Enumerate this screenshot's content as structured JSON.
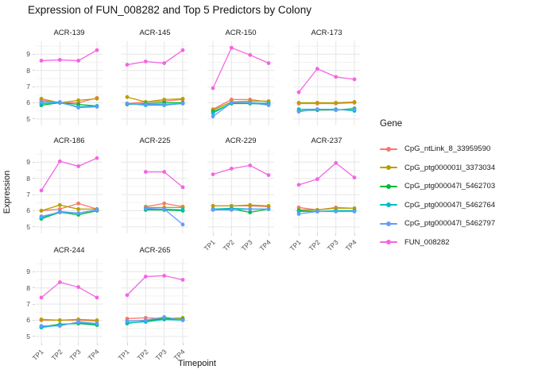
{
  "title": "Expression of FUN_008282 and Top 5 Predictors by Colony",
  "axis": {
    "x_title": "Timepoint",
    "y_title": "Expression",
    "x_ticks": [
      "TP1",
      "TP2",
      "TP3",
      "TP4"
    ],
    "y_ticks": [
      "5",
      "6",
      "7",
      "8",
      "9"
    ]
  },
  "legend": {
    "title": "Gene",
    "items": [
      {
        "label": "CpG_ntLink_8_33959590",
        "color": "#F8766D"
      },
      {
        "label": "CpG_ptg000001l_3373034",
        "color": "#B79F00"
      },
      {
        "label": "CpG_ptg000047l_5462703",
        "color": "#00BA38"
      },
      {
        "label": "CpG_ptg000047l_5462764",
        "color": "#00BFC4"
      },
      {
        "label": "CpG_ptg000047l_5462797",
        "color": "#619CFF"
      },
      {
        "label": "FUN_008282",
        "color": "#F564E3"
      }
    ]
  },
  "chart_data": {
    "type": "line",
    "facet_by": "Colony",
    "x": [
      "TP1",
      "TP2",
      "TP3",
      "TP4"
    ],
    "ylim": [
      4.6,
      9.8
    ],
    "grid": true,
    "legend_position": "right",
    "series_names": [
      "CpG_ntLink_8_33959590",
      "CpG_ptg000001l_3373034",
      "CpG_ptg000047l_5462703",
      "CpG_ptg000047l_5462764",
      "CpG_ptg000047l_5462797",
      "FUN_008282"
    ],
    "series_colors": [
      "#F8766D",
      "#B79F00",
      "#00BA38",
      "#00BFC4",
      "#619CFF",
      "#F564E3"
    ],
    "facets": [
      {
        "name": "ACR-139",
        "show_x_axis": false,
        "show_y_axis": true,
        "series": [
          [
            6.15,
            6.0,
            6.0,
            6.3
          ],
          [
            6.25,
            6.0,
            6.15,
            6.25
          ],
          [
            5.85,
            6.0,
            5.9,
            5.8
          ],
          [
            5.95,
            6.0,
            5.75,
            5.8
          ],
          [
            6.05,
            6.05,
            5.7,
            5.75
          ],
          [
            8.6,
            8.65,
            8.6,
            9.25
          ]
        ]
      },
      {
        "name": "ACR-145",
        "show_x_axis": false,
        "show_y_axis": false,
        "series": [
          [
            5.95,
            6.05,
            6.1,
            6.2
          ],
          [
            6.35,
            6.05,
            6.2,
            6.25
          ],
          [
            5.9,
            5.95,
            6.0,
            6.0
          ],
          [
            5.95,
            5.85,
            5.85,
            5.95
          ],
          [
            5.95,
            5.9,
            5.9,
            5.95
          ],
          [
            8.35,
            8.55,
            8.45,
            9.25
          ]
        ]
      },
      {
        "name": "ACR-150",
        "show_x_axis": false,
        "show_y_axis": false,
        "series": [
          [
            5.6,
            6.2,
            6.2,
            6.05
          ],
          [
            5.55,
            6.05,
            6.1,
            6.1
          ],
          [
            5.45,
            5.95,
            5.95,
            5.9
          ],
          [
            5.35,
            6.0,
            6.0,
            5.95
          ],
          [
            5.15,
            6.0,
            6.0,
            5.85
          ],
          [
            6.9,
            9.4,
            8.95,
            8.45
          ]
        ]
      },
      {
        "name": "ACR-173",
        "show_x_axis": false,
        "show_y_axis": false,
        "series": [
          [
            5.95,
            5.95,
            5.95,
            6.0
          ],
          [
            6.0,
            6.0,
            6.0,
            6.05
          ],
          [
            5.5,
            5.55,
            5.55,
            5.65
          ],
          [
            5.6,
            5.6,
            5.6,
            5.5
          ],
          [
            5.45,
            5.6,
            5.55,
            5.6
          ],
          [
            6.65,
            8.1,
            7.6,
            7.45
          ]
        ]
      },
      {
        "name": "ACR-186",
        "show_x_axis": false,
        "show_y_axis": true,
        "series": [
          [
            6.0,
            6.1,
            6.45,
            6.1
          ],
          [
            6.0,
            6.35,
            6.1,
            6.1
          ],
          [
            5.5,
            5.9,
            5.75,
            6.0
          ],
          [
            5.55,
            5.95,
            5.85,
            6.05
          ],
          [
            5.65,
            5.9,
            5.85,
            6.05
          ],
          [
            7.25,
            9.05,
            8.75,
            9.25
          ]
        ]
      },
      {
        "name": "ACR-225",
        "show_x_axis": false,
        "show_y_axis": false,
        "series": [
          [
            null,
            6.25,
            6.45,
            6.25
          ],
          [
            null,
            6.2,
            6.2,
            6.2
          ],
          [
            null,
            6.05,
            6.05,
            6.0
          ],
          [
            null,
            6.1,
            6.1,
            6.05
          ],
          [
            null,
            6.15,
            6.1,
            5.15
          ],
          [
            null,
            8.4,
            8.4,
            7.45
          ]
        ]
      },
      {
        "name": "ACR-229",
        "show_x_axis": true,
        "show_y_axis": false,
        "series": [
          [
            6.3,
            6.3,
            6.3,
            6.25
          ],
          [
            6.3,
            6.3,
            6.35,
            6.3
          ],
          [
            6.1,
            6.1,
            5.9,
            6.1
          ],
          [
            6.1,
            6.15,
            6.1,
            6.1
          ],
          [
            6.05,
            6.05,
            6.1,
            6.1
          ],
          [
            8.25,
            8.6,
            8.8,
            8.2
          ]
        ]
      },
      {
        "name": "ACR-237",
        "show_x_axis": true,
        "show_y_axis": false,
        "series": [
          [
            6.2,
            6.05,
            6.2,
            6.15
          ],
          [
            6.05,
            6.05,
            6.15,
            6.15
          ],
          [
            6.0,
            5.95,
            6.0,
            6.0
          ],
          [
            5.95,
            5.95,
            6.0,
            6.0
          ],
          [
            5.8,
            5.95,
            5.95,
            5.95
          ],
          [
            7.6,
            7.95,
            8.95,
            8.05
          ]
        ]
      },
      {
        "name": "ACR-244",
        "show_x_axis": true,
        "show_y_axis": true,
        "series": [
          [
            6.0,
            6.0,
            6.0,
            5.95
          ],
          [
            6.05,
            6.0,
            6.05,
            6.0
          ],
          [
            5.6,
            5.75,
            5.8,
            5.7
          ],
          [
            5.55,
            5.7,
            5.85,
            5.75
          ],
          [
            5.65,
            5.65,
            5.9,
            5.8
          ],
          [
            7.4,
            8.35,
            8.05,
            7.4
          ]
        ]
      },
      {
        "name": "ACR-265",
        "show_x_axis": true,
        "show_y_axis": false,
        "series": [
          [
            6.1,
            6.15,
            6.1,
            6.05
          ],
          [
            5.95,
            6.0,
            6.1,
            6.15
          ],
          [
            5.8,
            5.95,
            6.1,
            6.05
          ],
          [
            5.85,
            5.9,
            6.05,
            6.0
          ],
          [
            5.95,
            6.0,
            6.2,
            6.0
          ],
          [
            7.55,
            8.7,
            8.75,
            8.5
          ]
        ]
      }
    ]
  }
}
